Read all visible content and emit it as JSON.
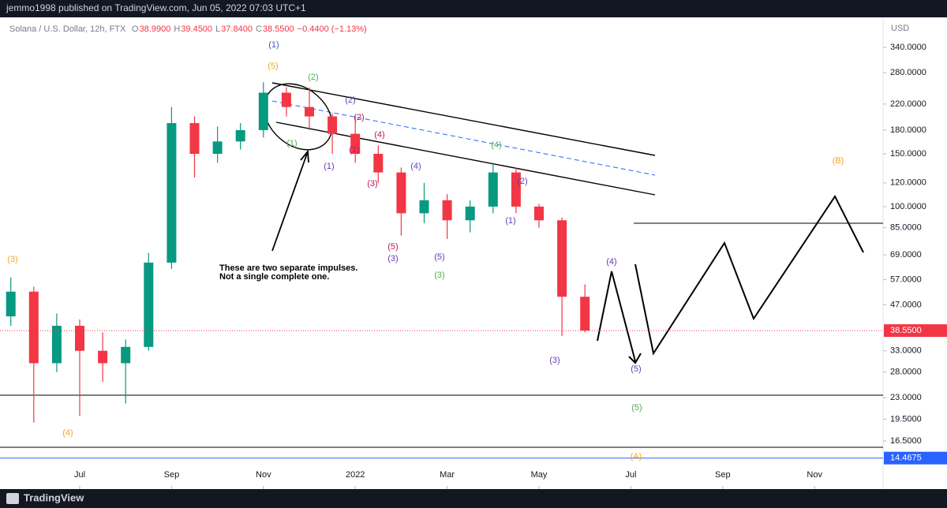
{
  "header": {
    "published": "jemmo1998 published on TradingView.com, Jun 05, 2022 07:03 UTC+1"
  },
  "footer": {
    "brand": "TradingView"
  },
  "chart_data": {
    "type": "candlestick",
    "legend": {
      "symbol": "Solana / U.S. Dollar, 12h, FTX",
      "ohlc": [
        {
          "key": "O",
          "value": "38.9900"
        },
        {
          "key": "H",
          "value": "39.4500"
        },
        {
          "key": "L",
          "value": "37.8400"
        },
        {
          "key": "C",
          "value": "38.5500"
        }
      ],
      "change": "−0.4400 (−1.13%)"
    },
    "currency": "USD",
    "log_scale": true,
    "grid": false,
    "up_color": "#089981",
    "down_color": "#f23645",
    "xlim": [
      -1.6,
      17.3
    ],
    "xticks": [
      {
        "value": 0,
        "label": "Jul"
      },
      {
        "value": 2,
        "label": "Sep"
      },
      {
        "value": 4,
        "label": "Nov"
      },
      {
        "value": 6,
        "label": "2022"
      },
      {
        "value": 8,
        "label": "Mar"
      },
      {
        "value": 10,
        "label": "May"
      },
      {
        "value": 12,
        "label": "Jul"
      },
      {
        "value": 14,
        "label": "Sep"
      },
      {
        "value": 16,
        "label": "Nov"
      }
    ],
    "ylim": [
      11.4,
      413
    ],
    "yticks": [
      {
        "value": 340,
        "label": "340.0000"
      },
      {
        "value": 280,
        "label": "280.0000"
      },
      {
        "value": 220,
        "label": "220.0000"
      },
      {
        "value": 180,
        "label": "180.0000"
      },
      {
        "value": 150,
        "label": "150.0000"
      },
      {
        "value": 120,
        "label": "120.0000"
      },
      {
        "value": 100,
        "label": "100.0000"
      },
      {
        "value": 85,
        "label": "85.0000"
      },
      {
        "value": 69,
        "label": "69.0000"
      },
      {
        "value": 57,
        "label": "57.0000"
      },
      {
        "value": 47,
        "label": "47.0000"
      },
      {
        "value": 33,
        "label": "33.0000"
      },
      {
        "value": 28,
        "label": "28.0000"
      },
      {
        "value": 23,
        "label": "23.0000"
      },
      {
        "value": 19.5,
        "label": "19.5000"
      },
      {
        "value": 16.5,
        "label": "16.5000"
      }
    ],
    "marked_levels": [
      {
        "value": 38.55,
        "label": "38.5500",
        "color": "#f23645"
      },
      {
        "value": 14.4675,
        "label": "14.4675",
        "color": "#2962ff"
      }
    ],
    "candles": {
      "x": [
        -1.5,
        -1.0,
        -0.5,
        0.0,
        0.5,
        1.0,
        1.5,
        2.0,
        2.5,
        3.0,
        3.5,
        4.0,
        4.5,
        5.0,
        5.5,
        6.0,
        6.5,
        7.0,
        7.5,
        8.0,
        8.5,
        9.0,
        9.5,
        10.0,
        10.5,
        11.0
      ],
      "open": [
        43,
        52,
        30,
        40,
        33,
        30,
        34,
        65,
        190,
        150,
        165,
        180,
        240,
        215,
        200,
        175,
        150,
        130,
        95,
        105,
        90,
        100,
        130,
        100,
        90,
        50
      ],
      "high": [
        58,
        54,
        44,
        42,
        38,
        36,
        70,
        215,
        200,
        185,
        190,
        260,
        250,
        250,
        205,
        200,
        160,
        135,
        120,
        110,
        105,
        140,
        135,
        102,
        92,
        55
      ],
      "low": [
        40,
        19,
        28,
        20,
        26,
        22,
        33,
        62,
        125,
        140,
        155,
        170,
        200,
        180,
        150,
        140,
        120,
        80,
        88,
        78,
        82,
        95,
        95,
        85,
        37,
        38
      ],
      "close": [
        52,
        30,
        40,
        33,
        30,
        34,
        65,
        190,
        150,
        165,
        180,
        240,
        215,
        200,
        175,
        150,
        130,
        95,
        105,
        90,
        100,
        130,
        100,
        90,
        50,
        38.55
      ]
    },
    "annotations": [
      {
        "text": "(1)",
        "color": "#3f51b5"
      },
      {
        "text": "(5)",
        "color": "#f5a623"
      },
      {
        "text": "(2)",
        "color": "#4caf50"
      },
      {
        "text": "(2)",
        "color": "#673ab7"
      },
      {
        "text": "(2)",
        "color": "#c2185b"
      },
      {
        "text": "(4)",
        "color": "#c2185b"
      },
      {
        "text": "(1)",
        "color": "#4caf50"
      },
      {
        "text": "(1)",
        "color": "#673ab7"
      },
      {
        "text": "(1)",
        "color": "#c2185b"
      },
      {
        "text": "(3)",
        "color": "#c2185b"
      },
      {
        "text": "(4)",
        "color": "#673ab7"
      },
      {
        "text": "(4)",
        "color": "#4caf50"
      },
      {
        "text": "(2)",
        "color": "#673ab7"
      },
      {
        "text": "(1)",
        "color": "#673ab7"
      },
      {
        "text": "(5)",
        "color": "#c2185b"
      },
      {
        "text": "(3)",
        "color": "#673ab7"
      },
      {
        "text": "(5)",
        "color": "#673ab7"
      },
      {
        "text": "(3)",
        "color": "#4caf50"
      },
      {
        "text": "(3)",
        "color": "#f5a623"
      },
      {
        "text": "(4)",
        "color": "#f5a623"
      },
      {
        "text": "(3)",
        "color": "#673ab7"
      },
      {
        "text": "(4)",
        "color": "#673ab7"
      },
      {
        "text": "(5)",
        "color": "#673ab7"
      },
      {
        "text": "(5)",
        "color": "#4caf50"
      },
      {
        "text": "(A)",
        "color": "#f5a623"
      },
      {
        "text": "(B)",
        "color": "#f5a623"
      }
    ],
    "note": [
      "These are two separate impulses.",
      "Not a single complete one."
    ]
  }
}
